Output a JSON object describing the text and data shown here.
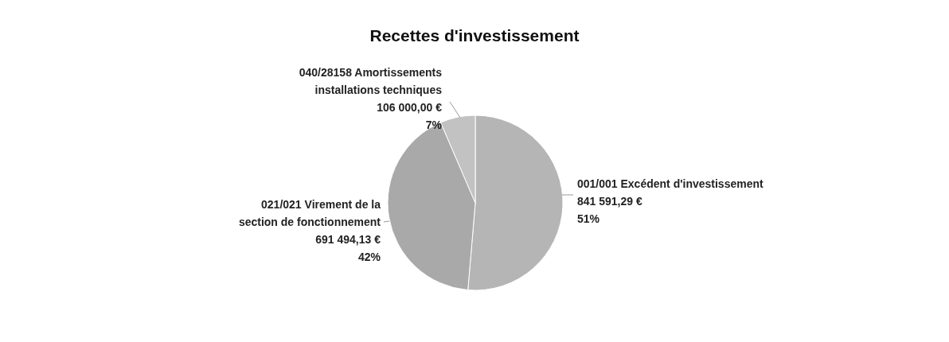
{
  "chart_data": {
    "type": "pie",
    "title": "Recettes d'investissement",
    "categories": [
      "001/001 Excédent d'investissement",
      "021/021 Virement de la section de fonctionnement",
      "040/28158 Amortissements installations techniques"
    ],
    "values": [
      841591.29,
      691494.13,
      106000.0
    ],
    "value_labels": [
      "841 591,29 €\n51%",
      "691 494,13 €\n42%",
      "106 000,00 €\n7%"
    ],
    "colors": [
      "#b5b5b5",
      "#a9a9a9",
      "#c2c2c2"
    ]
  }
}
